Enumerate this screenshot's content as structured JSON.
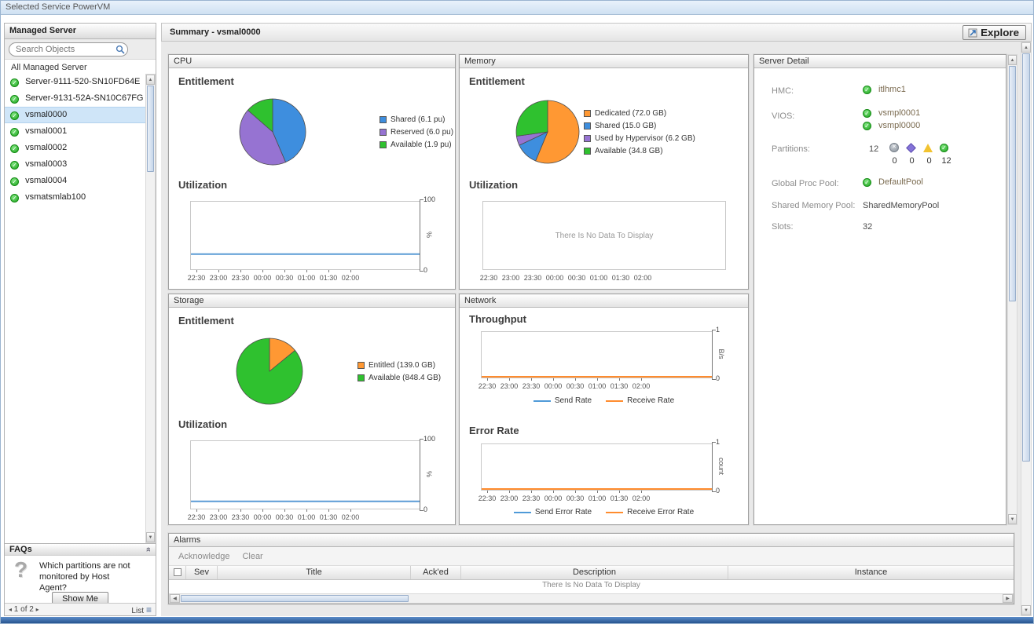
{
  "titlebar": {
    "title": "Selected Service PowerVM"
  },
  "icons": {
    "check": "✓",
    "question": "?",
    "collapse": "»",
    "list": "≡",
    "prev": "◂",
    "next": "▸",
    "up": "▲",
    "down": "▼",
    "left": "◀",
    "right": "▶",
    "cross": "✕"
  },
  "sidebar": {
    "header": "Managed Server",
    "search_placeholder": "Search Objects",
    "group_label": "All Managed Server",
    "servers": [
      "Server-9111-520-SN10FD64E",
      "Server-9131-52A-SN10C67FG",
      "vsmal0000",
      "vsmal0001",
      "vsmal0002",
      "vsmal0003",
      "vsmal0004",
      "vsmatsmlab100"
    ],
    "selected_server": "vsmal0000",
    "faqs": {
      "header": "FAQs",
      "question": "Which partitions are not monitored by Host Agent?",
      "show_me": "Show Me"
    },
    "footer": {
      "pagination": "1 of 2",
      "list_label": "List"
    }
  },
  "main": {
    "title": "Summary - vsmal0000",
    "explore_button": "Explore"
  },
  "panels": {
    "cpu": {
      "title": "CPU",
      "entitlement": "Entitlement",
      "utilization": "Utilization"
    },
    "memory": {
      "title": "Memory",
      "entitlement": "Entitlement",
      "utilization": "Utilization"
    },
    "storage": {
      "title": "Storage",
      "entitlement": "Entitlement",
      "utilization": "Utilization"
    },
    "network": {
      "title": "Network",
      "throughput": "Throughput",
      "error_rate": "Error Rate"
    },
    "server_detail": {
      "title": "Server Detail",
      "rows": {
        "hmc_label": "HMC:",
        "hmc_value": "itlhmc1",
        "vios_label": "VIOS:",
        "vios_value1": "vsmpl0001",
        "vios_value2": "vsmpl0000",
        "partitions_label": "Partitions:",
        "partitions_total": "12",
        "partitions_counts": [
          "0",
          "0",
          "0",
          "12"
        ],
        "global_proc_pool_label": "Global Proc Pool:",
        "global_proc_pool_value": "DefaultPool",
        "shared_memory_pool_label": "Shared Memory Pool:",
        "shared_memory_pool_value": "SharedMemoryPool",
        "slots_label": "Slots:",
        "slots_value": "32"
      }
    },
    "alarms": {
      "title": "Alarms",
      "toolbar": {
        "acknowledge": "Acknowledge",
        "clear": "Clear"
      },
      "columns": [
        "Sev",
        "Title",
        "Ack'ed",
        "Description",
        "Instance"
      ],
      "empty_message": "There Is No Data To Display"
    }
  },
  "chart_data": [
    {
      "id": "cpu-entitlement",
      "type": "pie",
      "title": "CPU Entitlement",
      "labels": [
        "Shared (6.1 pu)",
        "Reserved (6.0 pu)",
        "Available (1.9 pu)"
      ],
      "values": [
        6.1,
        6.0,
        1.9
      ],
      "colors": [
        "#3e8ede",
        "#9673d2",
        "#2fc12f"
      ],
      "legend_position": "right"
    },
    {
      "id": "memory-entitlement",
      "type": "pie",
      "title": "Memory Entitlement",
      "labels": [
        "Dedicated (72.0 GB)",
        "Shared (15.0 GB)",
        "Used by Hypervisor (6.2 GB)",
        "Available (34.8 GB)"
      ],
      "values": [
        72.0,
        15.0,
        6.2,
        34.8
      ],
      "colors": [
        "#ff9833",
        "#3e8ede",
        "#9673d2",
        "#2fc12f"
      ],
      "legend_position": "right"
    },
    {
      "id": "storage-entitlement",
      "type": "pie",
      "title": "Storage Entitlement",
      "labels": [
        "Entitled (139.0 GB)",
        "Available (848.4 GB)"
      ],
      "values": [
        139.0,
        848.4
      ],
      "colors": [
        "#ff9833",
        "#2fc12f"
      ],
      "legend_position": "right"
    },
    {
      "id": "cpu-utilization",
      "type": "line",
      "title": "CPU Utilization",
      "x": [
        "22:30",
        "23:00",
        "23:30",
        "00:00",
        "00:30",
        "01:00",
        "01:30",
        "02:00"
      ],
      "ylim": [
        0,
        100
      ],
      "ylabel": "%",
      "series": [
        {
          "name": "Utilization",
          "color": "#5b9bd5",
          "values": [
            22,
            22,
            22,
            22,
            22,
            22,
            22,
            22
          ]
        }
      ]
    },
    {
      "id": "memory-utilization",
      "type": "empty",
      "title": "Memory Utilization",
      "message": "There Is No Data To Display",
      "x": [
        "22:30",
        "23:00",
        "23:30",
        "00:00",
        "00:30",
        "01:00",
        "01:30",
        "02:00"
      ]
    },
    {
      "id": "storage-utilization",
      "type": "line",
      "title": "Storage Utilization",
      "x": [
        "22:30",
        "23:00",
        "23:30",
        "00:00",
        "00:30",
        "01:00",
        "01:30",
        "02:00"
      ],
      "ylim": [
        0,
        100
      ],
      "ylabel": "%",
      "series": [
        {
          "name": "Utilization",
          "color": "#5b9bd5",
          "values": [
            10,
            10,
            10,
            10,
            10,
            10,
            10,
            10
          ]
        }
      ]
    },
    {
      "id": "network-throughput",
      "type": "line",
      "title": "Network Throughput",
      "x": [
        "22:30",
        "23:00",
        "23:30",
        "00:00",
        "00:30",
        "01:00",
        "01:30",
        "02:00"
      ],
      "ylim": [
        0,
        1
      ],
      "ylabel": "B/s",
      "series": [
        {
          "name": "Send Rate",
          "color": "#4f9ad8",
          "values": [
            0,
            0,
            0,
            0,
            0,
            0,
            0,
            0
          ]
        },
        {
          "name": "Receive Rate",
          "color": "#ff8c2e",
          "values": [
            0,
            0,
            0,
            0,
            0,
            0,
            0,
            0
          ]
        }
      ]
    },
    {
      "id": "network-error-rate",
      "type": "line",
      "title": "Network Error Rate",
      "x": [
        "22:30",
        "23:00",
        "23:30",
        "00:00",
        "00:30",
        "01:00",
        "01:30",
        "02:00"
      ],
      "ylim": [
        0,
        1
      ],
      "ylabel": "count",
      "series": [
        {
          "name": "Send Error Rate",
          "color": "#4f9ad8",
          "values": [
            0,
            0,
            0,
            0,
            0,
            0,
            0,
            0
          ]
        },
        {
          "name": "Receive Error Rate",
          "color": "#ff8c2e",
          "values": [
            0,
            0,
            0,
            0,
            0,
            0,
            0,
            0
          ]
        }
      ]
    }
  ]
}
